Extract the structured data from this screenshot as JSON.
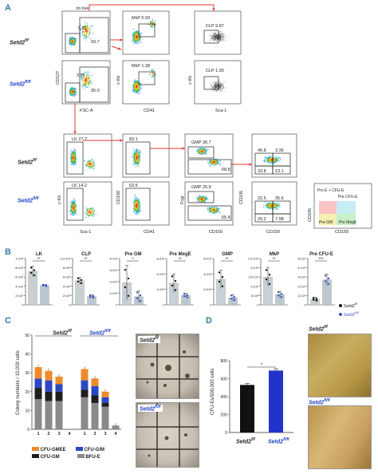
{
  "panels": {
    "A": "A",
    "B": "B",
    "C": "C",
    "D": "D"
  },
  "genotypes": {
    "wt": "Setd2",
    "wt_sup": "f/f",
    "ko": "Setd2",
    "ko_sup": "fl/fl"
  },
  "panel_a": {
    "lin_live": "lin live",
    "fsc_a": "FSC-A",
    "cd127": "CD127",
    "ckit": "c-Kit",
    "cd41": "CD41",
    "sca1": "Sca-1",
    "cd150": "CD150",
    "fcgr": "Fcgr",
    "cd105": "CD105",
    "top_wt": {
      "g1": "5.91",
      "g2": "93.7",
      "mkp": "MkP 5.93",
      "clp": "CLP 9.87"
    },
    "top_ko": {
      "g1": "3.95",
      "g2": "95.0",
      "mkp": "MkP 1.38",
      "clp": "CLP 1.90"
    },
    "bot_wt": {
      "lk": "LK 27.7",
      "g2": "83.1",
      "gmp": "GMP 30.7",
      "g4": "68.8",
      "q1": "46.8",
      "q2": "3.35",
      "q3": "33.8",
      "q4": "13.1"
    },
    "bot_ko": {
      "lk": "LK 14.2",
      "g2": "63.5",
      "gmp": "GMP 25.9",
      "g4": "65.4",
      "q1": "22.5",
      "q2": "35.6",
      "q3": "29.2",
      "q4": "7.98"
    },
    "legend": {
      "pro_e": "Pro E + CFU-E",
      "pre_cfue": "Pre CFU-E",
      "pre_gm": "Pre GM",
      "pre_mege": "Pre MegE"
    }
  },
  "chart_data": [
    {
      "type": "bar",
      "title": "LK",
      "ylabel": "",
      "y_ticks": [
        "1×10⁶",
        "8×10⁵",
        "6×10⁵",
        "4×10⁵",
        "2×10⁵",
        "0"
      ],
      "ylim": [
        0,
        1000000
      ],
      "categories": [
        "Setd2 f/f",
        "Setd2 fl/fl"
      ],
      "values": [
        720000,
        420000
      ],
      "errors": [
        110000,
        20000
      ],
      "sig": "**"
    },
    {
      "type": "bar",
      "title": "CLP",
      "ylabel": "",
      "y_ticks": [
        "1.0×10⁴",
        "8×10³",
        "6×10³",
        "4×10³",
        "2×10³",
        "0"
      ],
      "ylim": [
        0,
        10000
      ],
      "categories": [
        "Setd2 f/f",
        "Setd2 fl/fl"
      ],
      "values": [
        5200,
        1800
      ],
      "errors": [
        700,
        350
      ],
      "sig": "**"
    },
    {
      "type": "bar",
      "title": "Pre GM",
      "ylabel": "",
      "y_ticks": [
        "4×10⁴",
        "3×10⁴",
        "2×10⁴",
        "1×10⁴",
        "0"
      ],
      "ylim": [
        0,
        40000
      ],
      "categories": [
        "Setd2 f/f",
        "Setd2 fl/fl"
      ],
      "values": [
        19000,
        7000
      ],
      "errors": [
        15000,
        5000
      ],
      "sig": "*"
    },
    {
      "type": "bar",
      "title": "Pre MegE",
      "ylabel": "",
      "y_ticks": [
        "3×10⁴",
        "2×10⁴",
        "1×10⁴",
        "0"
      ],
      "ylim": [
        0,
        30000
      ],
      "categories": [
        "Setd2 f/f",
        "Setd2 fl/fl"
      ],
      "values": [
        14000,
        6000
      ],
      "errors": [
        6000,
        1500
      ],
      "sig": "**"
    },
    {
      "type": "bar",
      "title": "GMP",
      "ylabel": "",
      "y_ticks": [
        "6×10⁴",
        "4×10⁴",
        "2×10⁴",
        "0"
      ],
      "ylim": [
        0,
        60000
      ],
      "categories": [
        "Setd2 f/f",
        "Setd2 fl/fl"
      ],
      "values": [
        33000,
        9000
      ],
      "errors": [
        12000,
        4000
      ],
      "sig": "**"
    },
    {
      "type": "bar",
      "title": "MkP",
      "ylabel": "",
      "y_ticks": [
        "2.5×10⁴",
        "2×10⁴",
        "1.5×10⁴",
        "1×10⁴",
        "5×10³",
        "0"
      ],
      "ylim": [
        0,
        25000
      ],
      "categories": [
        "Setd2 f/f",
        "Setd2 fl/fl"
      ],
      "values": [
        15000,
        5500
      ],
      "errors": [
        5000,
        1800
      ],
      "sig": "**"
    },
    {
      "type": "bar",
      "title": "Pre CFU-E",
      "ylabel": "",
      "y_ticks": [
        "5×10⁴",
        "4×10⁴",
        "3×10⁴",
        "2×10⁴",
        "1×10⁴",
        "0"
      ],
      "ylim": [
        0,
        50000
      ],
      "categories": [
        "Setd2 f/f",
        "Setd2 fl/fl"
      ],
      "values": [
        6000,
        27000
      ],
      "errors": [
        2000,
        6000
      ],
      "sig": "***"
    },
    {
      "type": "bar",
      "title": "",
      "ylabel": "Colony numbers / 10,000 cells",
      "y_ticks": [
        "50",
        "40",
        "30",
        "20",
        "10",
        "0"
      ],
      "ylim": [
        0,
        50
      ],
      "categories": [
        "1",
        "2",
        "3",
        "4",
        "1",
        "2",
        "3",
        "4"
      ],
      "group_labels": [
        "Setd2 f/f",
        "Setd2 fl/fl"
      ],
      "series": [
        {
          "name": "BFU-E",
          "values": [
            16,
            15,
            15,
            0,
            17,
            14,
            12,
            2
          ]
        },
        {
          "name": "CFU-GM",
          "values": [
            6,
            5,
            5,
            0,
            4,
            4,
            2,
            0
          ]
        },
        {
          "name": "CFU-G/M",
          "values": [
            5,
            6,
            4,
            0,
            5,
            5,
            3,
            0
          ]
        },
        {
          "name": "CFU-GMEE",
          "values": [
            6,
            5,
            4,
            0,
            6,
            4,
            3,
            0
          ]
        }
      ]
    },
    {
      "type": "bar",
      "title": "",
      "ylabel": "CFU-Es/500,000 cells",
      "y_ticks": [
        "800",
        "600",
        "400",
        "200",
        "0"
      ],
      "ylim": [
        0,
        800
      ],
      "categories": [
        "Setd2 f/f",
        "Setd2 fl/fl"
      ],
      "values": [
        530,
        690
      ],
      "errors": [
        15,
        20
      ],
      "sig": "*"
    }
  ],
  "legend_b": {
    "wt": "Setd2",
    "wt_sup": "f/f",
    "ko": "Setd2",
    "ko_sup": "fl/fl"
  },
  "colors": {
    "wt_bar": "#c8d0d4",
    "ko_bar": "#bcc7cf",
    "ko_dot": "#3a55c9",
    "bfue": "#8a8a8a",
    "cfugm": "#1f1f1f",
    "cfugm2": "#2a48c4",
    "cfugmee": "#ef8a2a",
    "d_wt": "#111111",
    "d_ko": "#2233cc",
    "arrow": "#e53935"
  }
}
